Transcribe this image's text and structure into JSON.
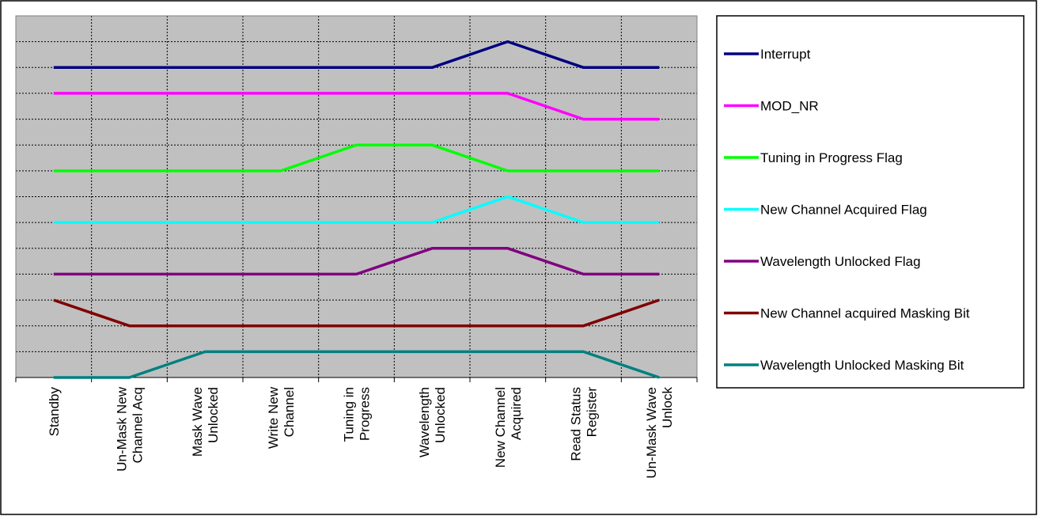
{
  "chart_data": {
    "type": "line",
    "title": "",
    "xlabel": "",
    "ylabel": "",
    "categories": [
      "Standby",
      "Un-Mask New Channel Acq",
      "Mask Wave Unlocked",
      "Write New Channel",
      "Tuning in Progress",
      "Wavelength Unlocked",
      "New Channel Acquired",
      "Read Status Register",
      "Un-Mask Wave Unlock"
    ],
    "category_lines": [
      [
        "Standby"
      ],
      [
        "Un-Mask New",
        "Channel Acq"
      ],
      [
        "Mask Wave",
        "Unlocked"
      ],
      [
        "Write New",
        "Channel"
      ],
      [
        "Tuning in",
        "Progress"
      ],
      [
        "Wavelength",
        "Unlocked"
      ],
      [
        "New Channel",
        "Acquired"
      ],
      [
        "Read Status",
        "Register"
      ],
      [
        "Un-Mask Wave",
        "Unlock"
      ]
    ],
    "ylim": [
      0,
      14
    ],
    "grid": true,
    "legend_position": "right",
    "plot_background": "#c0c0c0",
    "series": [
      {
        "name": "Interrupt",
        "color": "#000080",
        "values": [
          12,
          12,
          12,
          12,
          12,
          12,
          13,
          12,
          12
        ]
      },
      {
        "name": "MOD_NR",
        "color": "#ff00ff",
        "values": [
          11,
          11,
          11,
          11,
          11,
          11,
          11,
          10,
          10
        ]
      },
      {
        "name": "Tuning in Progress Flag",
        "color": "#00ff00",
        "values": [
          8,
          8,
          8,
          8,
          9,
          9,
          8,
          8,
          8
        ]
      },
      {
        "name": "New Channel Acquired Flag",
        "color": "#00ffff",
        "values": [
          6,
          6,
          6,
          6,
          6,
          6,
          7,
          6,
          6
        ]
      },
      {
        "name": "Wavelength Unlocked Flag",
        "color": "#800080",
        "values": [
          4,
          4,
          4,
          4,
          4,
          5,
          5,
          4,
          4
        ]
      },
      {
        "name": "New Channel acquired Masking Bit",
        "color": "#800000",
        "values": [
          3,
          2,
          2,
          2,
          2,
          2,
          2,
          2,
          3
        ]
      },
      {
        "name": "Wavelength Unlocked Masking Bit",
        "color": "#008080",
        "values": [
          0,
          0,
          1,
          1,
          1,
          1,
          1,
          1,
          0
        ]
      }
    ]
  }
}
